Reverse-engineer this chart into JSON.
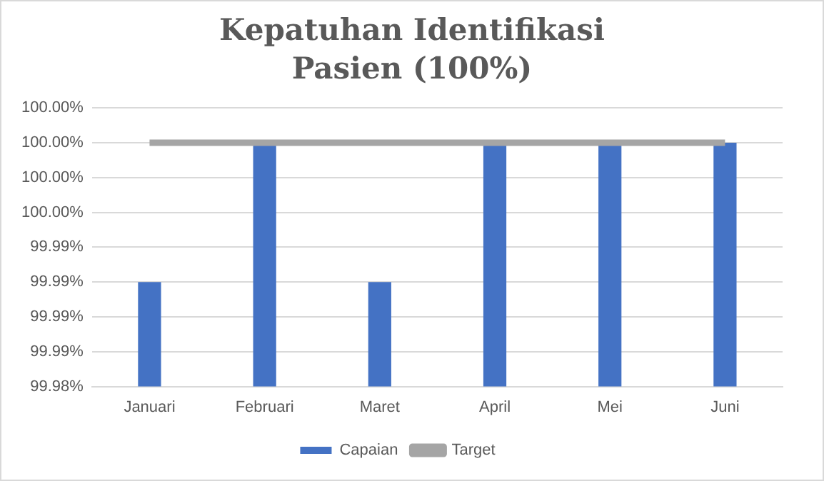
{
  "chart_data": {
    "type": "bar",
    "title": "Kepatuhan Identifikasi Pasien (100%)",
    "categories": [
      "Januari",
      "Februari",
      "Maret",
      "April",
      "Mei",
      "Juni"
    ],
    "series": [
      {
        "name": "Capaian",
        "color": "#4472c4",
        "values": [
          99.9904,
          100,
          99.9904,
          100,
          100,
          100
        ]
      },
      {
        "name": "Target",
        "type": "line",
        "color": "#a5a5a5",
        "values": [
          100,
          100,
          100,
          100,
          100,
          100
        ]
      }
    ],
    "ylim": [
      99.9832,
      100.0024
    ],
    "yticks": [
      {
        "value": 99.9832,
        "label": "99.98%"
      },
      {
        "value": 99.9856,
        "label": "99.99%"
      },
      {
        "value": 99.988,
        "label": "99.99%"
      },
      {
        "value": 99.9904,
        "label": "99.99%"
      },
      {
        "value": 99.9928,
        "label": "99.99%"
      },
      {
        "value": 99.9952,
        "label": "100.00%"
      },
      {
        "value": 99.9976,
        "label": "100.00%"
      },
      {
        "value": 100,
        "label": "100.00%"
      },
      {
        "value": 100.0024,
        "label": "100.00%"
      }
    ],
    "grid": "y",
    "legend": "bottom",
    "marker": "none"
  }
}
